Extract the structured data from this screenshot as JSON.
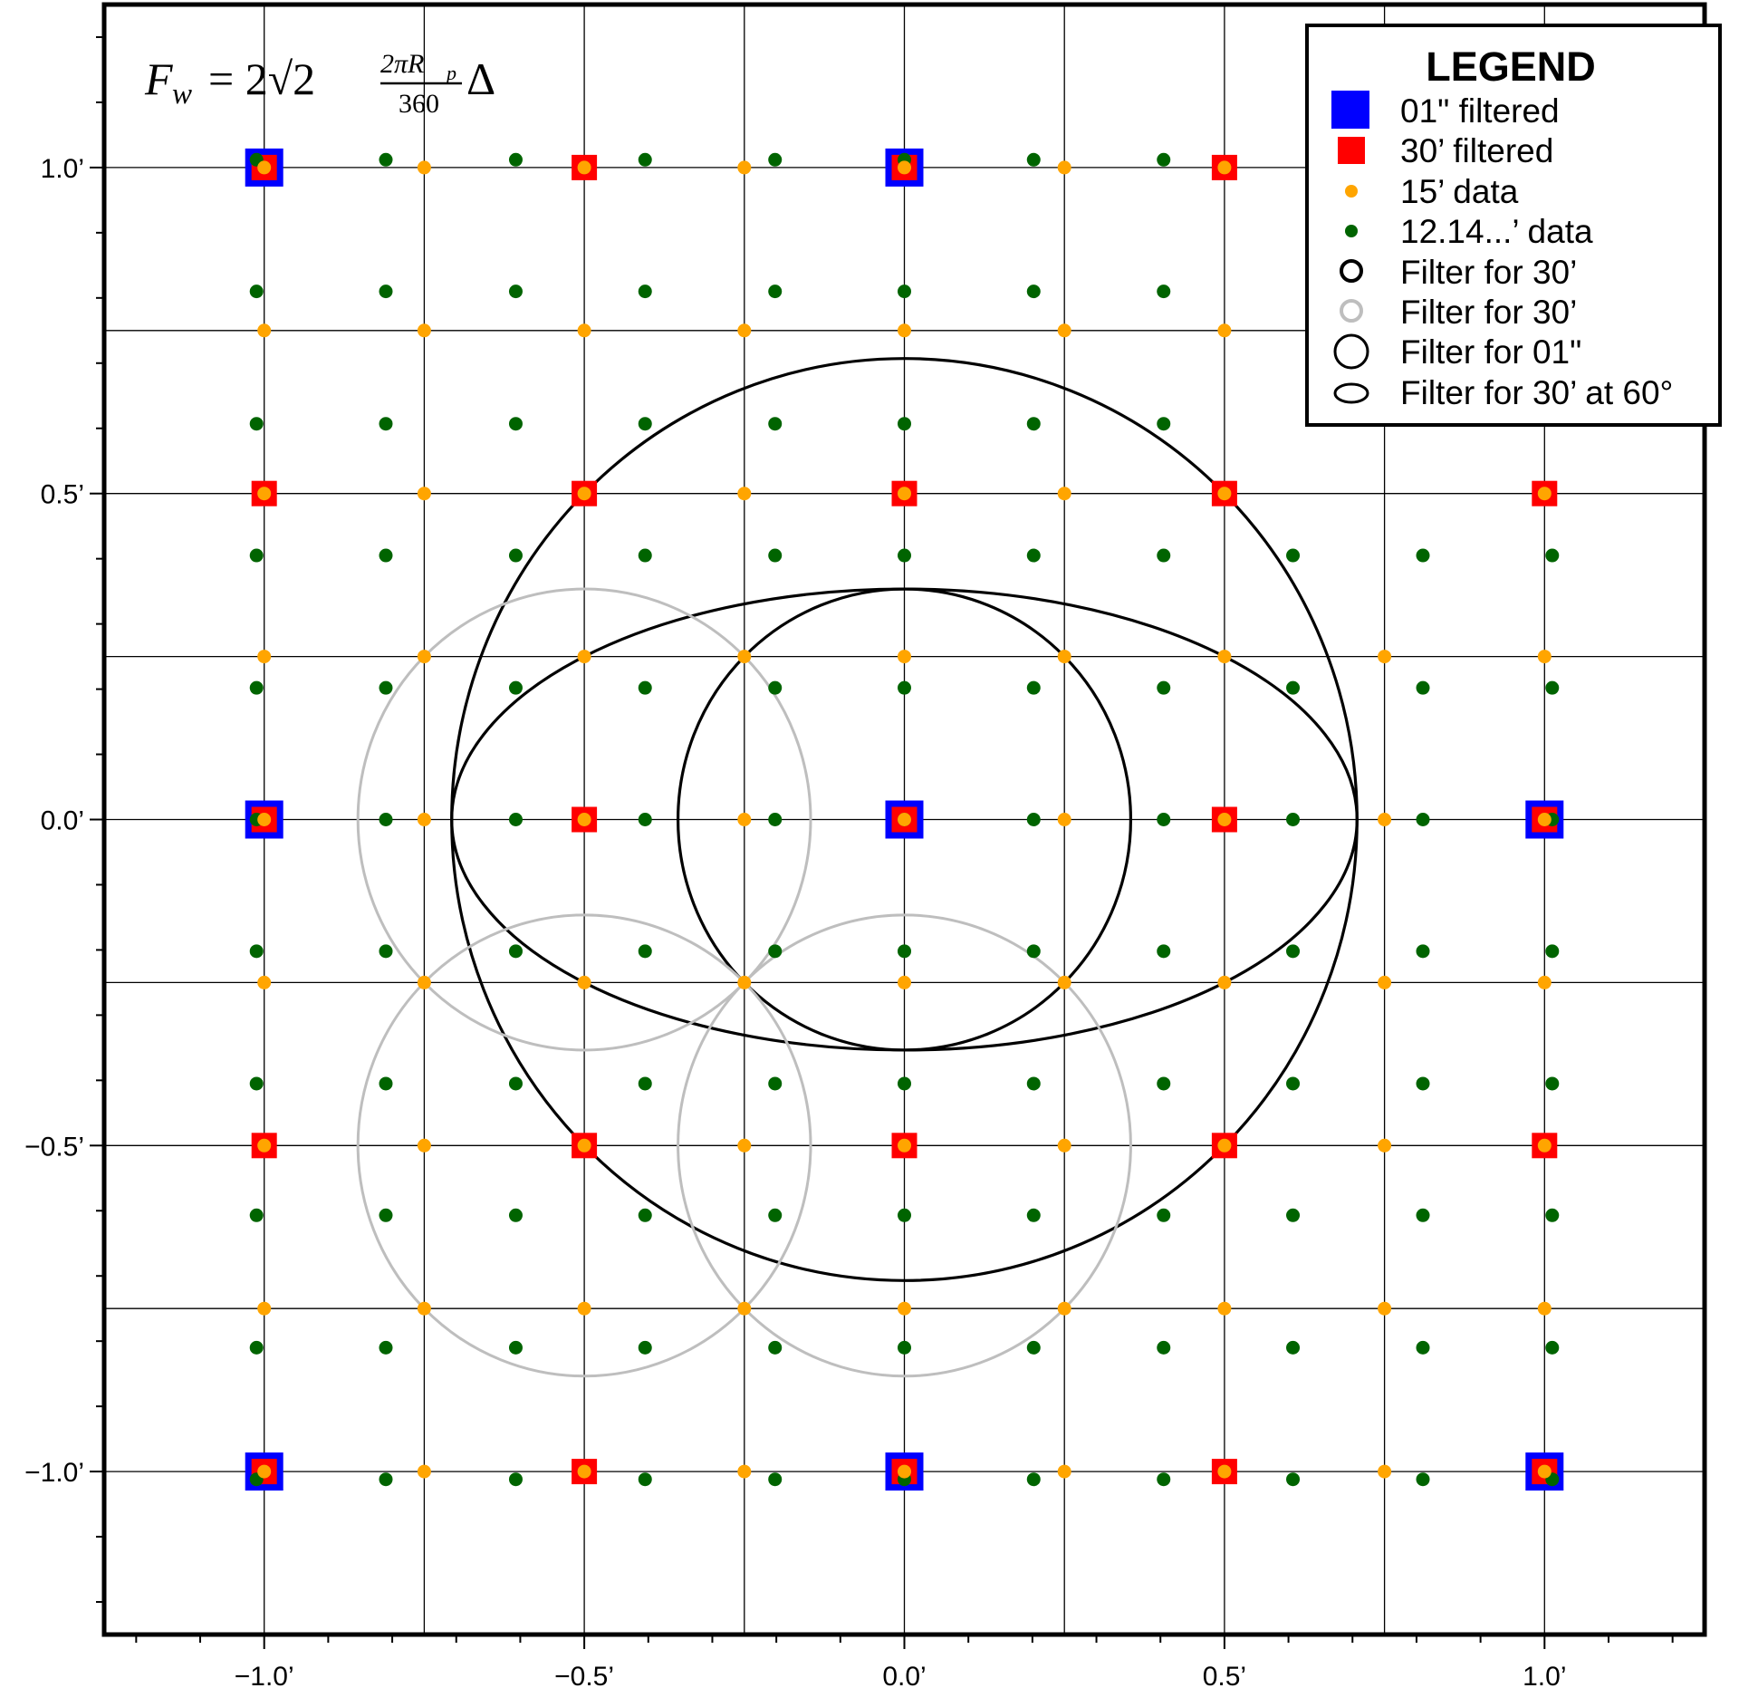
{
  "chart_data": {
    "type": "scatter",
    "title": "",
    "xlabel": "",
    "ylabel": "",
    "xlim": [
      -1.25,
      1.25
    ],
    "ylim": [
      -1.25,
      1.25
    ],
    "grid": "on (lines every 0.25')",
    "legend_position": "top-right",
    "annotation": {
      "formula_left": "F",
      "formula_sub": "w",
      "formula_eq": "= 2√2",
      "formula_num": "2πR",
      "formula_num_sub": "p",
      "formula_den": "360",
      "formula_tail": "Δ"
    },
    "x_ticks": [
      {
        "value": -1.0,
        "label": "−1.0’"
      },
      {
        "value": -0.5,
        "label": "−0.5’"
      },
      {
        "value": 0.0,
        "label": "0.0’"
      },
      {
        "value": 0.5,
        "label": "0.5’"
      },
      {
        "value": 1.0,
        "label": "1.0’"
      }
    ],
    "y_ticks": [
      {
        "value": 1.0,
        "label": "1.0’"
      },
      {
        "value": 0.5,
        "label": "0.5’"
      },
      {
        "value": 0.0,
        "label": "0.0’"
      },
      {
        "value": -0.5,
        "label": "−0.5’"
      },
      {
        "value": -1.0,
        "label": "−1.0’"
      }
    ],
    "legend": {
      "title": "LEGEND",
      "entries": [
        {
          "label": "01\" filtered",
          "symbol": "square",
          "color": "#0000ff"
        },
        {
          "label": "30’ filtered",
          "symbol": "square",
          "color": "#ff0000"
        },
        {
          "label": "15’ data",
          "symbol": "dot",
          "color": "#ffa500"
        },
        {
          "label": "12.14...’ data",
          "symbol": "dot",
          "color": "#006400"
        },
        {
          "label": "Filter for 30’",
          "symbol": "ring",
          "color": "#000000"
        },
        {
          "label": "Filter for 30’",
          "symbol": "ring",
          "color": "#bebebe"
        },
        {
          "label": "Filter for 01\"",
          "symbol": "ring",
          "color": "#000000"
        },
        {
          "label": "Filter for 30’ at 60°",
          "symbol": "ellipse",
          "color": "#000000"
        }
      ]
    },
    "series": [
      {
        "name": "01\" filtered",
        "kind": "square",
        "color": "#0000ff",
        "points": [
          [
            -1,
            1
          ],
          [
            0,
            1
          ],
          [
            -1,
            0
          ],
          [
            0,
            0
          ],
          [
            1,
            0
          ],
          [
            -1,
            -1
          ],
          [
            0,
            -1
          ],
          [
            1,
            -1
          ]
        ]
      },
      {
        "name": "30’ filtered",
        "kind": "square",
        "color": "#ff0000",
        "points": [
          [
            -1,
            1
          ],
          [
            -0.5,
            1
          ],
          [
            0,
            1
          ],
          [
            0.5,
            1
          ],
          [
            -1,
            0.5
          ],
          [
            -0.5,
            0.5
          ],
          [
            0,
            0.5
          ],
          [
            0.5,
            0.5
          ],
          [
            1,
            0.5
          ],
          [
            -1,
            0
          ],
          [
            -0.5,
            0
          ],
          [
            0,
            0
          ],
          [
            0.5,
            0
          ],
          [
            1,
            0
          ],
          [
            -1,
            -0.5
          ],
          [
            -0.5,
            -0.5
          ],
          [
            0,
            -0.5
          ],
          [
            0.5,
            -0.5
          ],
          [
            1,
            -0.5
          ],
          [
            -1,
            -1
          ],
          [
            -0.5,
            -1
          ],
          [
            0,
            -1
          ],
          [
            0.5,
            -1
          ],
          [
            1,
            -1
          ]
        ]
      },
      {
        "name": "15’ data",
        "kind": "dot",
        "color": "#ffa500",
        "grid": {
          "start": -1.0,
          "stop": 1.0,
          "step": 0.25
        },
        "exclude": [
          [
            1,
            1
          ],
          [
            0.75,
            1
          ],
          [
            0.75,
            0.5
          ],
          [
            1,
            0.75
          ]
        ]
      },
      {
        "name": "12.14...’ data",
        "kind": "dot",
        "color": "#006400",
        "x": [
          -1.012,
          -0.81,
          -0.607,
          -0.405,
          -0.202,
          0.0,
          0.202,
          0.405,
          0.607,
          0.81,
          1.012
        ],
        "y": [
          1.012,
          0.81,
          0.607,
          0.405,
          0.202,
          0.0,
          -0.202,
          -0.405,
          -0.607,
          -0.81,
          -1.012
        ],
        "exclude_region": {
          "x_min": 0.55,
          "y_min": 0.55
        }
      },
      {
        "name": "Filter for 01\"",
        "kind": "circle",
        "color": "#000000",
        "center": [
          0,
          0
        ],
        "radius": 0.7071
      },
      {
        "name": "Filter for 30’",
        "kind": "circle",
        "color": "#000000",
        "center": [
          0,
          0
        ],
        "radius": 0.3536
      },
      {
        "name": "Filter for 30’ at 60°",
        "kind": "ellipse",
        "color": "#000000",
        "center": [
          0,
          0
        ],
        "rx": 0.7071,
        "ry": 0.3536
      },
      {
        "name": "Filter for 30’",
        "kind": "circles",
        "color": "#bebebe",
        "radius": 0.3536,
        "centers": [
          [
            -0.5,
            0
          ],
          [
            -0.5,
            -0.5
          ],
          [
            0,
            -0.5
          ]
        ]
      }
    ]
  }
}
